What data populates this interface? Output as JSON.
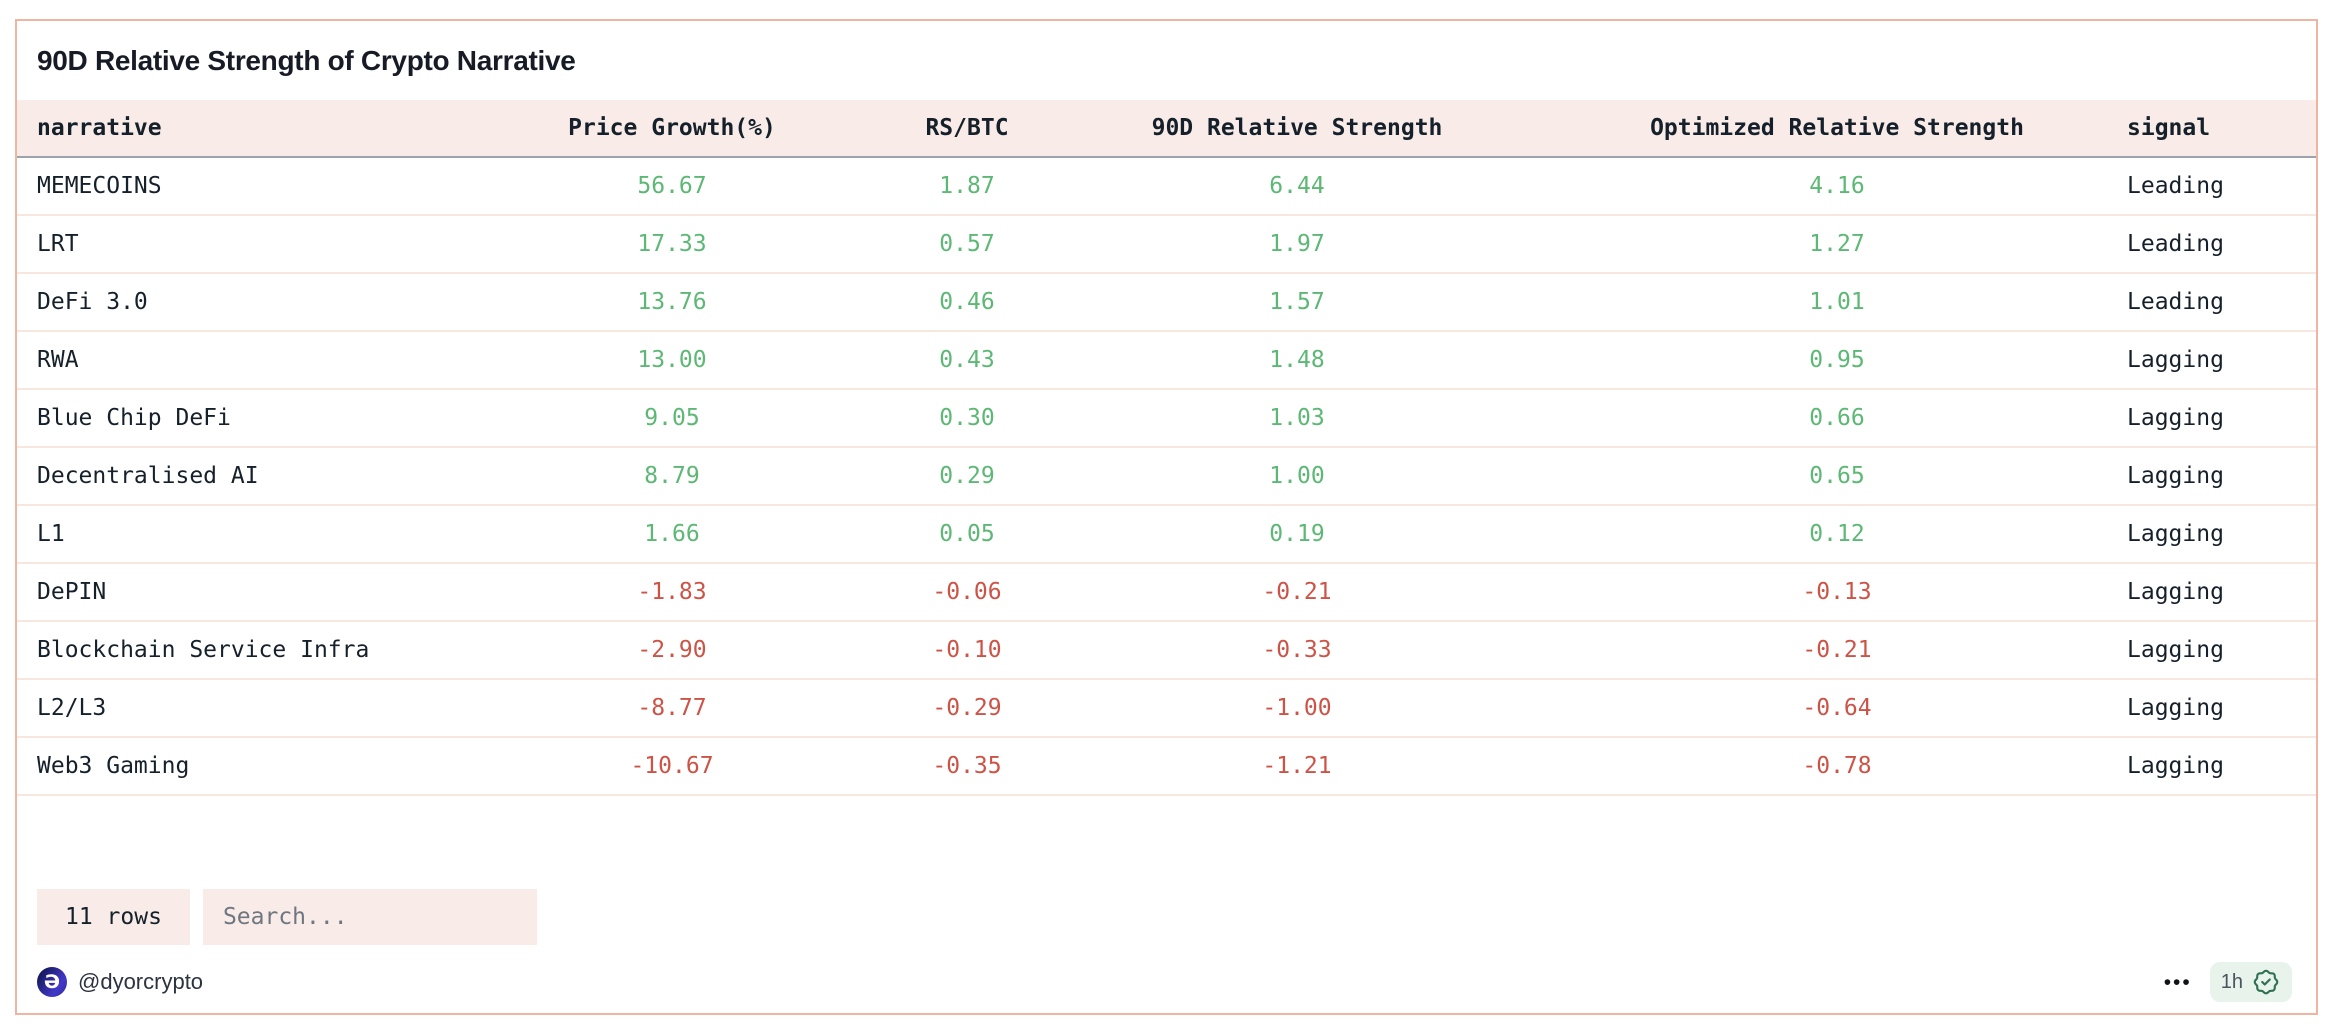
{
  "card": {
    "title": "90D Relative Strength of Crypto Narrative"
  },
  "table": {
    "columns": [
      {
        "key": "narrative",
        "label": "narrative",
        "align": "left",
        "numeric": false
      },
      {
        "key": "price_growth",
        "label": "Price Growth(%)",
        "align": "center",
        "numeric": true
      },
      {
        "key": "rs_btc",
        "label": "RS/BTC",
        "align": "center",
        "numeric": true
      },
      {
        "key": "strength_90d",
        "label": "90D Relative Strength",
        "align": "center",
        "numeric": true
      },
      {
        "key": "optimized_strength",
        "label": "Optimized Relative Strength",
        "align": "center",
        "numeric": true
      },
      {
        "key": "signal",
        "label": "signal",
        "align": "left",
        "numeric": false
      }
    ],
    "rows": [
      {
        "narrative": "MEMECOINS",
        "price_growth": "56.67",
        "rs_btc": "1.87",
        "strength_90d": "6.44",
        "optimized_strength": "4.16",
        "signal": "Leading"
      },
      {
        "narrative": "LRT",
        "price_growth": "17.33",
        "rs_btc": "0.57",
        "strength_90d": "1.97",
        "optimized_strength": "1.27",
        "signal": "Leading"
      },
      {
        "narrative": "DeFi 3.0",
        "price_growth": "13.76",
        "rs_btc": "0.46",
        "strength_90d": "1.57",
        "optimized_strength": "1.01",
        "signal": "Leading"
      },
      {
        "narrative": "RWA",
        "price_growth": "13.00",
        "rs_btc": "0.43",
        "strength_90d": "1.48",
        "optimized_strength": "0.95",
        "signal": "Lagging"
      },
      {
        "narrative": "Blue Chip DeFi",
        "price_growth": "9.05",
        "rs_btc": "0.30",
        "strength_90d": "1.03",
        "optimized_strength": "0.66",
        "signal": "Lagging"
      },
      {
        "narrative": "Decentralised AI",
        "price_growth": "8.79",
        "rs_btc": "0.29",
        "strength_90d": "1.00",
        "optimized_strength": "0.65",
        "signal": "Lagging"
      },
      {
        "narrative": "L1",
        "price_growth": "1.66",
        "rs_btc": "0.05",
        "strength_90d": "0.19",
        "optimized_strength": "0.12",
        "signal": "Lagging"
      },
      {
        "narrative": "DePIN",
        "price_growth": "-1.83",
        "rs_btc": "-0.06",
        "strength_90d": "-0.21",
        "optimized_strength": "-0.13",
        "signal": "Lagging"
      },
      {
        "narrative": "Blockchain Service Infra",
        "price_growth": "-2.90",
        "rs_btc": "-0.10",
        "strength_90d": "-0.33",
        "optimized_strength": "-0.21",
        "signal": "Lagging"
      },
      {
        "narrative": "L2/L3",
        "price_growth": "-8.77",
        "rs_btc": "-0.29",
        "strength_90d": "-1.00",
        "optimized_strength": "-0.64",
        "signal": "Lagging"
      },
      {
        "narrative": "Web3 Gaming",
        "price_growth": "-10.67",
        "rs_btc": "-0.35",
        "strength_90d": "-1.21",
        "optimized_strength": "-0.78",
        "signal": "Lagging"
      }
    ]
  },
  "controls": {
    "rows_count_label": "11 rows",
    "search_placeholder": "Search..."
  },
  "footer": {
    "logo_glyph": "Ə",
    "handle": "@dyorcrypto",
    "more_label": "•••",
    "age": "1h"
  },
  "colors": {
    "positive_value": "#5cb874",
    "negative_value": "#cd5346",
    "card_border": "#efb5a1",
    "header_bg": "#f9ece8",
    "row_divider": "#f7e7df",
    "header_divider": "#9ca3ab",
    "chip_bg": "#f9ece8",
    "badge_bg": "#e8f3ec",
    "badge_seal": "#2e7050",
    "logo_bg": "#3a30b8"
  }
}
